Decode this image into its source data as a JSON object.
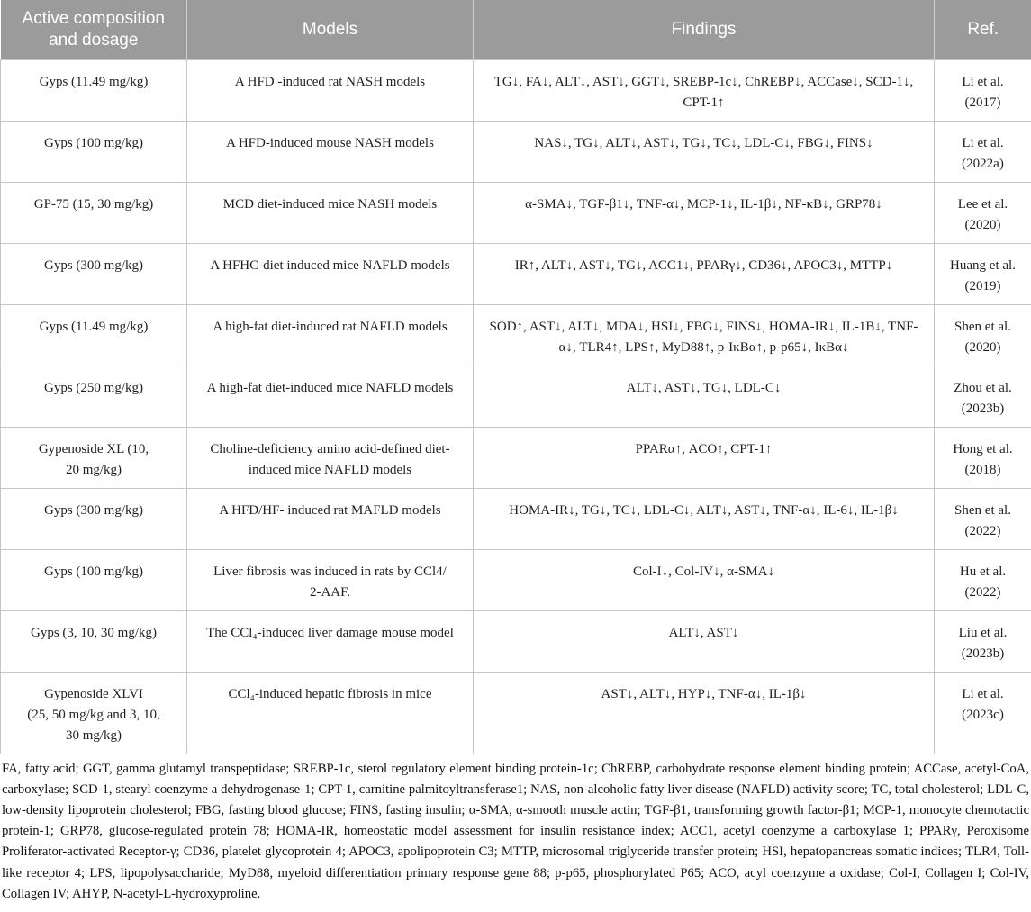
{
  "colors": {
    "header_bg": "#9b9b9b",
    "header_text": "#ffffff",
    "grid_border": "#c6c6c6",
    "body_text": "#1f1f1f"
  },
  "table": {
    "columns": [
      {
        "label": "Active composition and dosage"
      },
      {
        "label": "Models"
      },
      {
        "label": "Findings"
      },
      {
        "label": "Ref."
      }
    ],
    "rows": [
      {
        "composition": "Gyps (11.49 mg/kg)",
        "model": "A HFD -induced rat NASH models",
        "findings": "TG↓, FA↓, ALT↓, AST↓, GGT↓, SREBP-1c↓, ChREBP↓, ACCase↓, SCD-1↓,\nCPT-1↑",
        "ref": "Li et al.\n(2017)"
      },
      {
        "composition": "Gyps (100 mg/kg)",
        "model": "A HFD-induced mouse NASH models",
        "findings": "NAS↓, TG↓, ALT↓, AST↓, TG↓, TC↓, LDL-C↓, FBG↓, FINS↓",
        "ref": "Li et al.\n(2022a)"
      },
      {
        "composition": "GP-75 (15, 30 mg/kg)",
        "model": "MCD diet-induced mice NASH models",
        "findings": "α-SMA↓, TGF-β1↓, TNF-α↓, MCP-1↓, IL-1β↓, NF-κB↓, GRP78↓",
        "ref": "Lee et al.\n(2020)"
      },
      {
        "composition": "Gyps (300 mg/kg)",
        "model": "A HFHC-diet induced mice NAFLD models",
        "findings": "IR↑, ALT↓, AST↓, TG↓, ACC1↓, PPARγ↓, CD36↓, APOC3↓, MTTP↓",
        "ref": "Huang et al.\n(2019)"
      },
      {
        "composition": "Gyps (11.49 mg/kg)",
        "model": "A high-fat diet-induced rat NAFLD models",
        "findings": "SOD↑, AST↓, ALT↓, MDA↓, HSI↓, FBG↓, FINS↓, HOMA-IR↓, IL-1B↓, TNF-\nα↓, TLR4↑, LPS↑, MyD88↑, p-IκBα↑, p-p65↓, IκBα↓",
        "ref": "Shen et al.\n(2020)"
      },
      {
        "composition": "Gyps (250 mg/kg)",
        "model": "A high-fat diet-induced mice NAFLD models",
        "findings": "ALT↓, AST↓, TG↓, LDL-C↓",
        "ref": "Zhou et al.\n(2023b)"
      },
      {
        "composition": "Gypenoside XL (10,\n20 mg/kg)",
        "model": "Choline-deficiency amino acid-defined diet-\ninduced mice NAFLD models",
        "findings": "PPARα↑, ACO↑, CPT-1↑",
        "ref": "Hong et al.\n(2018)"
      },
      {
        "composition": "Gyps (300 mg/kg)",
        "model": "A HFD/HF- induced rat MAFLD models",
        "findings": "HOMA-IR↓, TG↓, TC↓, LDL-C↓, ALT↓, AST↓, TNF-α↓, IL-6↓, IL-1β↓",
        "ref": "Shen et al.\n(2022)"
      },
      {
        "composition": "Gyps (100 mg/kg)",
        "model": "Liver fibrosis was induced in rats by CCl4/\n2-AAF.",
        "findings": "Col-I↓, Col-IV↓, α-SMA↓",
        "ref": "Hu et al.\n(2022)"
      },
      {
        "composition": "Gyps (3, 10, 30 mg/kg)",
        "model": "The CCl₄-induced liver damage mouse model",
        "findings": "ALT↓, AST↓",
        "ref": "Liu et al.\n(2023b)"
      },
      {
        "composition": "Gypenoside XLVI\n(25, 50 mg/kg and 3, 10,\n30 mg/kg)",
        "model": "CCl₄-induced hepatic fibrosis in mice",
        "findings": "AST↓, ALT↓, HYP↓, TNF-α↓, IL-1β↓",
        "ref": "Li et al.\n(2023c)"
      }
    ]
  },
  "footnote": {
    "text": "FA, fatty acid; GGT, gamma glutamyl transpeptidase; SREBP-1c, sterol regulatory element binding protein-1c; ChREBP, carbohydrate response element binding protein; ACCase, acetyl-CoA, carboxylase; SCD-1, stearyl coenzyme a dehydrogenase-1; CPT-1, carnitine palmitoyltransferase1; NAS, non-alcoholic fatty liver disease (NAFLD) activity score; TC, total cholesterol; LDL-C, low-density lipoprotein cholesterol; FBG, fasting blood glucose; FINS, fasting insulin; α-SMA, α-smooth muscle actin; TGF-β1, transforming growth factor-β1; MCP-1, monocyte chemotactic protein-1; GRP78, glucose-regulated protein 78; HOMA-IR, homeostatic model assessment for insulin resistance index; ACC1, acetyl coenzyme a carboxylase 1; PPARγ, Peroxisome Proliferator-activated Receptor-γ; CD36, platelet glycoprotein 4; APOC3, apolipoprotein C3; MTTP, microsomal triglyceride transfer protein; HSI, hepatopancreas somatic indices; TLR4, Toll-like receptor 4; LPS, lipopolysaccharide; MyD88, myeloid differentiation primary response gene 88; p-p65, phosphorylated P65; ACO, acyl coenzyme a oxidase; Col-I, Collagen I; Col-IV, Collagen IV; AHYP, N-acetyl-L-hydroxyproline."
  }
}
